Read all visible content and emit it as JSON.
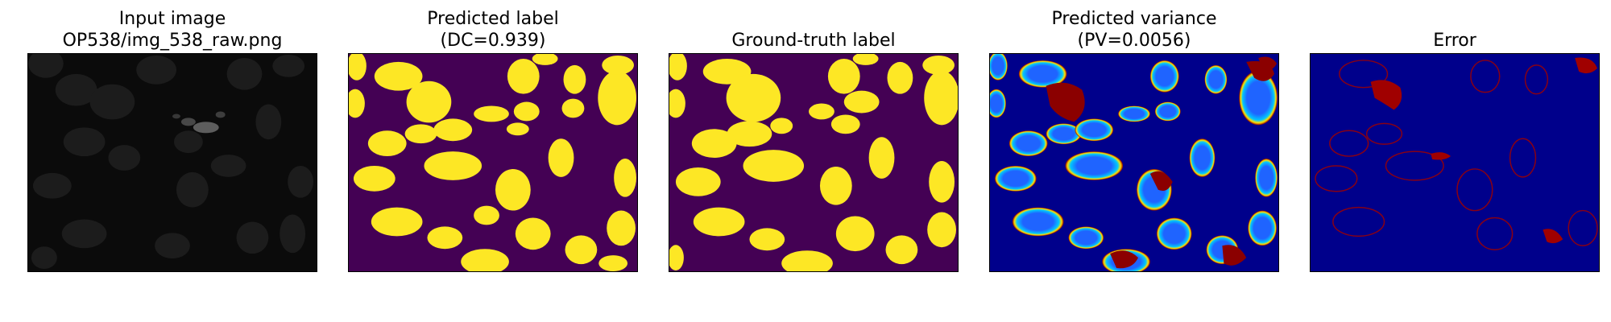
{
  "colors": {
    "raw_background": "#0b0b0b",
    "raw_nucleus": "#1e1e1e",
    "raw_bright": "#7a7a7a",
    "label_background": "#440154",
    "label_foreground": "#fde725",
    "jet_background": "#00008b",
    "jet_low": "#1f64ff",
    "jet_mid": "#00c8ff",
    "jet_high": "#ffe000",
    "jet_max": "#8b0000",
    "error_background": "#00008b",
    "error_mark": "#a00000"
  },
  "panels": [
    {
      "id": "input",
      "title_line1": "Input image",
      "title_line2": "OP538/img_538_raw.png",
      "colormap": "gray"
    },
    {
      "id": "predicted-label",
      "title_line1": "Predicted label",
      "title_line2": "(DC=0.939)",
      "colormap": "viridis"
    },
    {
      "id": "ground-truth",
      "title_line1": "Ground-truth label",
      "title_line2": "",
      "colormap": "viridis"
    },
    {
      "id": "predicted-variance",
      "title_line1": "Predicted variance",
      "title_line2": "(PV=0.0056)",
      "colormap": "jet"
    },
    {
      "id": "error",
      "title_line1": "Error",
      "title_line2": "",
      "colormap": "jet"
    }
  ]
}
